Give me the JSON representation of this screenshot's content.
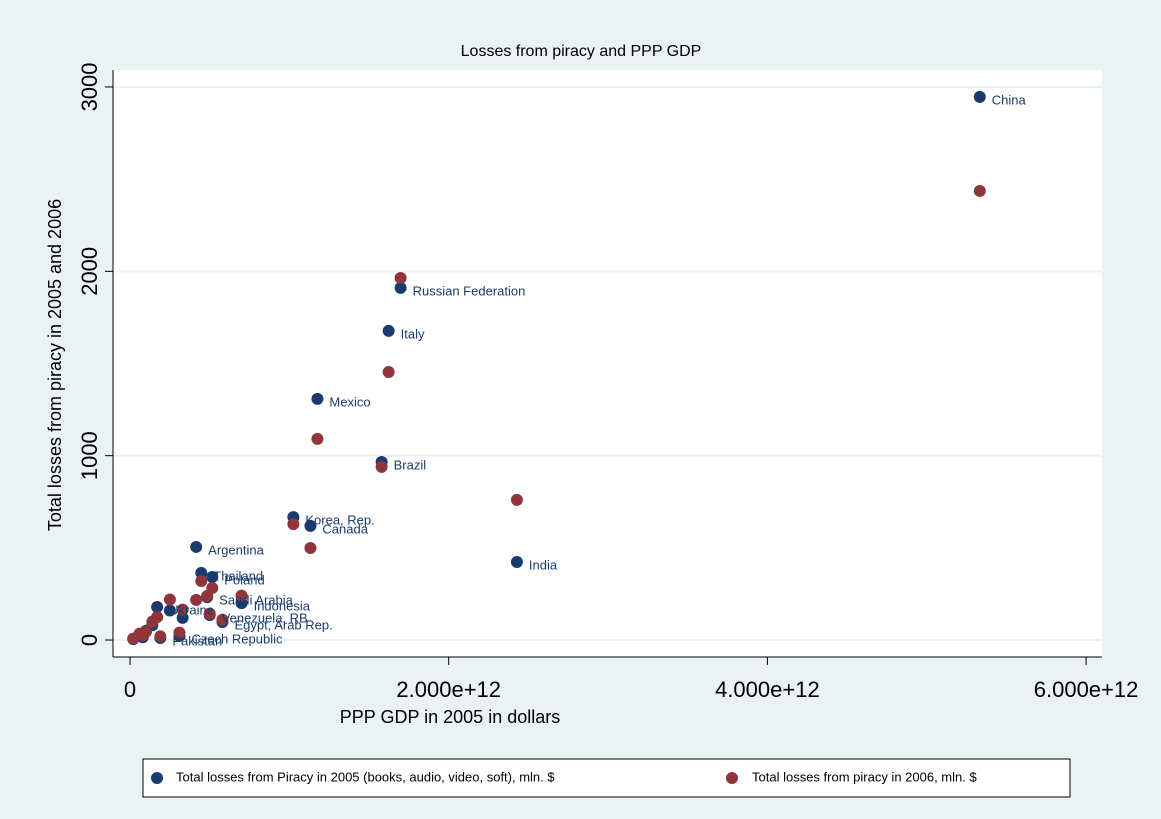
{
  "chart_data": {
    "type": "scatter",
    "title": "Losses from piracy and PPP GDP",
    "x_label": "PPP GDP  in 2005 in dollars",
    "y_label": "Total losses from piracy in 2005 and 2006",
    "x": [
      5333000000000,
      1698000000000,
      1623000000000,
      1176000000000,
      1579000000000,
      1025000000000,
      1132000000000,
      2428000000000,
      415000000000,
      447000000000,
      516000000000,
      484000000000,
      700000000000,
      170000000000,
      500000000000,
      580000000000,
      310000000000,
      190000000000,
      20000000000,
      60000000000,
      100000000000,
      250000000000,
      330000000000,
      140000000000,
      80000000000
    ],
    "point_labels": [
      "China",
      "Russian Federation",
      "Italy",
      "Mexico",
      "Brazil",
      "Korea, Rep.",
      "Canada",
      "India",
      "Argentina",
      "Thailand",
      "Poland",
      "Saudi Arabia",
      "Indonesia",
      "Ukraine",
      "Venezuela, RB",
      "Egypt, Arab Rep.",
      "Czech Republic",
      "Pakistan",
      null,
      null,
      null,
      null,
      null,
      null,
      null
    ],
    "series": [
      {
        "name": "Total losses from Piracy in 2005 (books, audio, video, soft), mln. $",
        "color": "#1a3b6e",
        "values": [
          2946,
          1910,
          1677,
          1308,
          966,
          667,
          619,
          423,
          505,
          364,
          342,
          233,
          200,
          179,
          136,
          98,
          22,
          11,
          5,
          30,
          50,
          160,
          120,
          80,
          15
        ]
      },
      {
        "name": "Total losses from piracy in 2006, mln. $",
        "color": "#90353b",
        "values": [
          2436,
          1964,
          1454,
          1091,
          939,
          629,
          499,
          760,
          218,
          320,
          282,
          239,
          241,
          125,
          143,
          110,
          40,
          20,
          8,
          35,
          45,
          220,
          165,
          100,
          25
        ]
      }
    ],
    "xlim": [
      -107000000000,
      6100000000000
    ],
    "ylim": [
      -92,
      3092
    ],
    "xticks": [
      0,
      {
        "value": 2000000000000,
        "label": "2.000e+12"
      },
      {
        "value": 4000000000000,
        "label": "4.000e+12"
      },
      {
        "value": 6000000000000,
        "label": "6.000e+12"
      }
    ],
    "yticks": [
      0,
      1000,
      2000,
      3000
    ],
    "grid": true,
    "legend": "bottom"
  }
}
